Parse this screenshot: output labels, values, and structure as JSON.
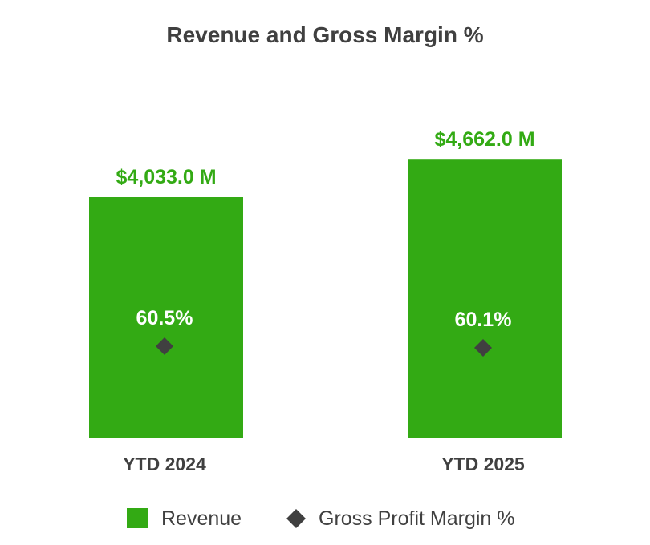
{
  "chart_data": {
    "type": "bar",
    "title": "Revenue and Gross Margin %",
    "categories": [
      "YTD 2024",
      "YTD 2025"
    ],
    "series": [
      {
        "name": "Revenue",
        "kind": "bar",
        "values": [
          4033.0,
          4662.0
        ],
        "labels": [
          "$4,033.0 M",
          "$4,662.0 M"
        ],
        "color": "#33aa14"
      },
      {
        "name": "Gross Profit Margin %",
        "kind": "marker",
        "marker": "diamond",
        "values": [
          60.5,
          60.1
        ],
        "labels": [
          "60.5%",
          "60.1%"
        ],
        "color": "#404040"
      }
    ],
    "xlabel": "",
    "ylabel": "",
    "grid": false,
    "legend": "bottom-center"
  }
}
